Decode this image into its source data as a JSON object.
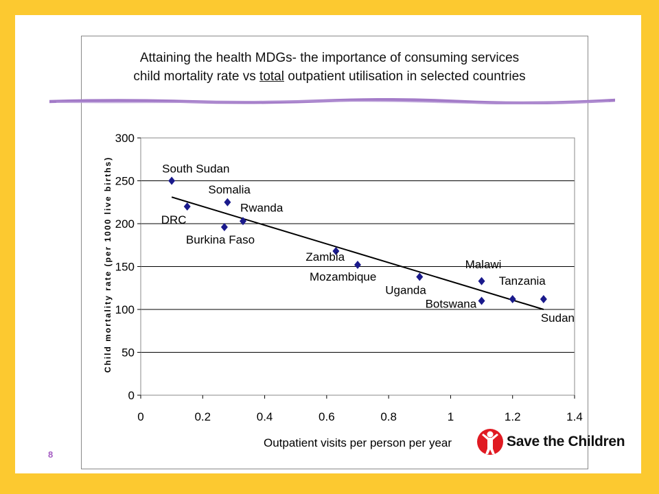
{
  "slide": {
    "title_line1": "Attaining the health MDGs- the importance of consuming services",
    "title_line2_pre": "child mortality rate vs ",
    "title_line2_underlined": "total",
    "title_line2_post": " outpatient utilisation in selected countries",
    "page_number": "8",
    "logo_text": "Save the Children",
    "colors": {
      "background": "#fcc930",
      "accent_line": "#a37bc8",
      "marker": "#1a1a8c",
      "page_number": "#a45cc2",
      "logo_red": "#e01a22"
    }
  },
  "chart_data": {
    "type": "scatter",
    "title": "Attaining the health MDGs- the importance of consuming services child mortality rate vs total outpatient utilisation in selected countries",
    "xlabel": "Outpatient visits per person per year",
    "ylabel": "Child mortality rate (per 1000 live births)",
    "xlim": [
      0,
      1.4
    ],
    "ylim": [
      0,
      300
    ],
    "x_ticks": [
      "0",
      "0.2",
      "0.4",
      "0.6",
      "0.8",
      "1",
      "1.2",
      "1.4"
    ],
    "y_ticks": [
      "0",
      "50",
      "100",
      "150",
      "200",
      "250",
      "300"
    ],
    "grid": "horizontal",
    "marker": "diamond",
    "points": [
      {
        "label": "South Sudan",
        "x": 0.1,
        "y": 250
      },
      {
        "label": "DRC",
        "x": 0.15,
        "y": 220
      },
      {
        "label": "Somalia",
        "x": 0.28,
        "y": 225
      },
      {
        "label": "Burkina Faso",
        "x": 0.27,
        "y": 196
      },
      {
        "label": "Rwanda",
        "x": 0.33,
        "y": 203
      },
      {
        "label": "Zambia",
        "x": 0.63,
        "y": 168
      },
      {
        "label": "Mozambique",
        "x": 0.7,
        "y": 152
      },
      {
        "label": "Uganda",
        "x": 0.9,
        "y": 138
      },
      {
        "label": "Malawi",
        "x": 1.1,
        "y": 133
      },
      {
        "label": "Botswana",
        "x": 1.1,
        "y": 110
      },
      {
        "label": "Tanzania",
        "x": 1.2,
        "y": 112
      },
      {
        "label": "Sudan",
        "x": 1.3,
        "y": 112
      }
    ],
    "trendline": {
      "x": [
        0.1,
        1.3
      ],
      "y": [
        231,
        100
      ]
    }
  }
}
